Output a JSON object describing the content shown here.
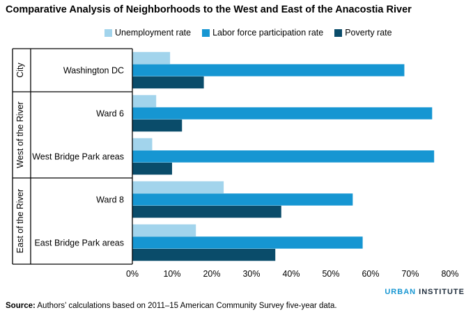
{
  "title": "Comparative Analysis of Neighborhoods to the West and East of the Anacostia River",
  "brand": {
    "first": "URBAN",
    "second": "INSTITUTE"
  },
  "source": {
    "label": "Source:",
    "text": "Authors’ calculations based on 2011–15 American Community Survey five-year data."
  },
  "colors": {
    "unemployment": "#a2d4ec",
    "labor": "#1696d2",
    "poverty": "#0a4c6a"
  },
  "chart_data": {
    "type": "bar",
    "orientation": "horizontal",
    "title": "Comparative Analysis of Neighborhoods to the West and East of the Anacostia River",
    "groups": [
      {
        "label": "City",
        "categories": [
          "Washington DC"
        ]
      },
      {
        "label": "West of the River",
        "categories": [
          "Ward 6",
          "West Bridge Park areas"
        ]
      },
      {
        "label": "East of the River",
        "categories": [
          "Ward 8",
          "East Bridge Park areas"
        ]
      }
    ],
    "categories": [
      "Washington DC",
      "Ward 6",
      "West Bridge Park areas",
      "Ward 8",
      "East Bridge Park areas"
    ],
    "series": [
      {
        "name": "Unemployment rate",
        "color": "#a2d4ec",
        "values": [
          9.5,
          6.0,
          5.0,
          23.0,
          16.0
        ]
      },
      {
        "name": "Labor force participation rate",
        "color": "#1696d2",
        "values": [
          68.5,
          75.5,
          76.0,
          55.5,
          58.0
        ]
      },
      {
        "name": "Poverty rate",
        "color": "#0a4c6a",
        "values": [
          18.0,
          12.5,
          10.0,
          37.5,
          36.0
        ]
      }
    ],
    "x_ticks": [
      "0%",
      "10%",
      "20%",
      "30%",
      "40%",
      "50%",
      "60%",
      "70%",
      "80%"
    ],
    "xlim": [
      0,
      80
    ],
    "legend_position": "top",
    "grid": false
  }
}
